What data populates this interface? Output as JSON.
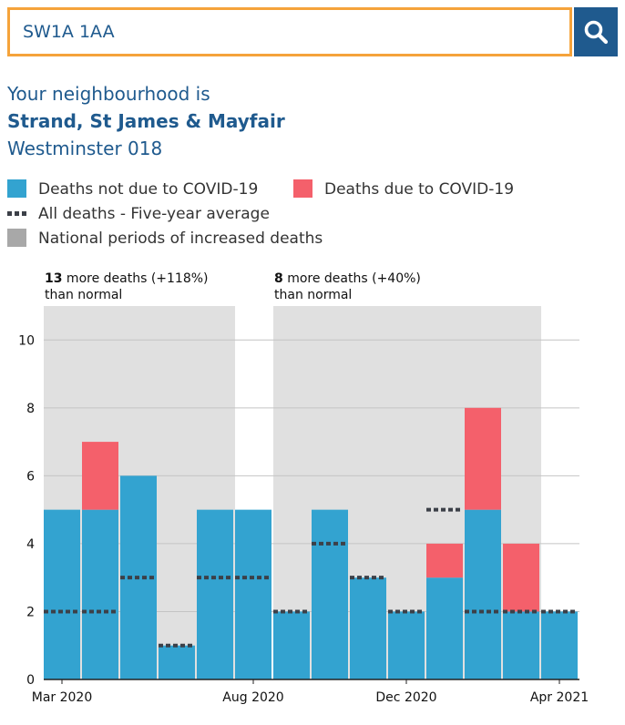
{
  "search": {
    "value": "SW1A 1AA",
    "button_icon": "search-icon"
  },
  "neighbourhood": {
    "intro": "Your neighbourhood is",
    "name": "Strand, St James & Mayfair",
    "code": "Westminster 018"
  },
  "legend": {
    "not_covid": "Deaths not due to COVID-19",
    "covid": "Deaths due to COVID-19",
    "average": "All deaths - Five-year average",
    "periods": "National periods of increased deaths"
  },
  "colors": {
    "not_covid": "#33a3d0",
    "covid": "#f4606b",
    "average": "#3c4048",
    "period": "#e0e0e0",
    "brand": "#1f5a8e",
    "search_border": "#f5a33b"
  },
  "chart_data": {
    "type": "bar",
    "stacked": true,
    "categories": [
      "Mar 2020",
      "Apr 2020",
      "May 2020",
      "Jun 2020",
      "Jul 2020",
      "Aug 2020",
      "Sep 2020",
      "Oct 2020",
      "Nov 2020",
      "Dec 2020",
      "Jan 2021",
      "Feb 2021",
      "Mar 2021",
      "Apr 2021"
    ],
    "x_tick_labels": [
      "Mar 2020",
      "Aug 2020",
      "Dec 2020",
      "Apr 2021"
    ],
    "series": [
      {
        "name": "Deaths not due to COVID-19",
        "values": [
          5,
          5,
          6,
          1,
          5,
          5,
          2,
          5,
          3,
          2,
          3,
          5,
          2,
          2
        ]
      },
      {
        "name": "Deaths due to COVID-19",
        "values": [
          0,
          2,
          0,
          0,
          0,
          0,
          0,
          0,
          0,
          0,
          1,
          3,
          2,
          0
        ]
      }
    ],
    "five_year_average": [
      2,
      2,
      3,
      1,
      3,
      3,
      2,
      4,
      3,
      2,
      5,
      2,
      2,
      2
    ],
    "ylim": [
      0,
      11
    ],
    "y_ticks": [
      0,
      2,
      4,
      6,
      8,
      10
    ],
    "grid": true,
    "periods": [
      {
        "start": "Mar 2020",
        "end": "Jul 2020",
        "bold": "13",
        "text": " more deaths (+118%)",
        "line2": "than normal"
      },
      {
        "start": "Sep 2020",
        "end": "Mar 2021",
        "bold": "8",
        "text": " more deaths (+40%)",
        "line2": "than normal"
      }
    ]
  }
}
